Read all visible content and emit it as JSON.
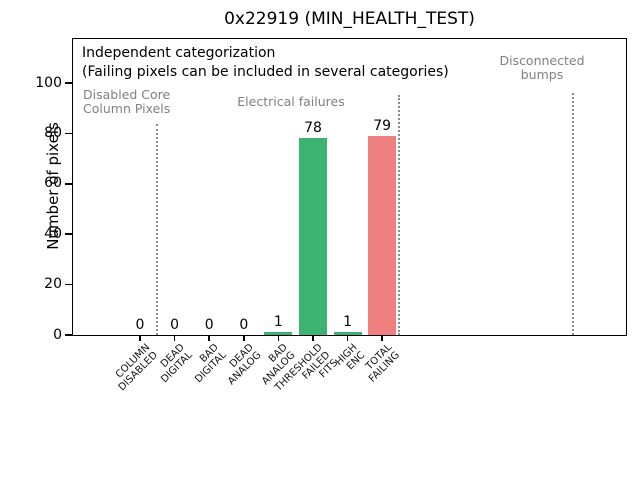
{
  "chart_data": {
    "type": "bar",
    "title": "0x22919 (MIN_HEALTH_TEST)",
    "ylabel": "Number of pixels",
    "xlabel": "",
    "categories": [
      "COLUMN\nDISABLED",
      "DEAD\nDIGITAL",
      "BAD\nDIGITAL",
      "DEAD\nANALOG",
      "BAD\nANALOG",
      "THRESHOLD\nFAILED\nFITS",
      "HIGH\nENC",
      "TOTAL\nFAILING"
    ],
    "values": [
      0,
      0,
      0,
      0,
      1,
      78,
      1,
      79
    ],
    "value_labels": [
      "0",
      "0",
      "0",
      "0",
      "1",
      "78",
      "1",
      "79"
    ],
    "bar_colors": [
      "#3CB371",
      "#3CB371",
      "#3CB371",
      "#3CB371",
      "#3CB371",
      "#3CB371",
      "#3CB371",
      "#F08080"
    ],
    "yticks": [
      0,
      20,
      40,
      60,
      80,
      100
    ],
    "ylim": [
      0,
      118
    ],
    "grid": false,
    "legend": null,
    "annotation_line1": "Independent categorization",
    "annotation_line2": "(Failing pixels can be included in several categories)",
    "section_labels": [
      "Disabled Core\nColumn Pixels",
      "Electrical failures",
      "Disconnected bumps"
    ],
    "separator_line_style": "dotted"
  },
  "colors": {
    "bar_green": "#3CB371",
    "bar_red": "#F08080",
    "section_text_gray": "#808080",
    "separator_gray": "#8B8B8B",
    "axis_black": "#000000"
  }
}
